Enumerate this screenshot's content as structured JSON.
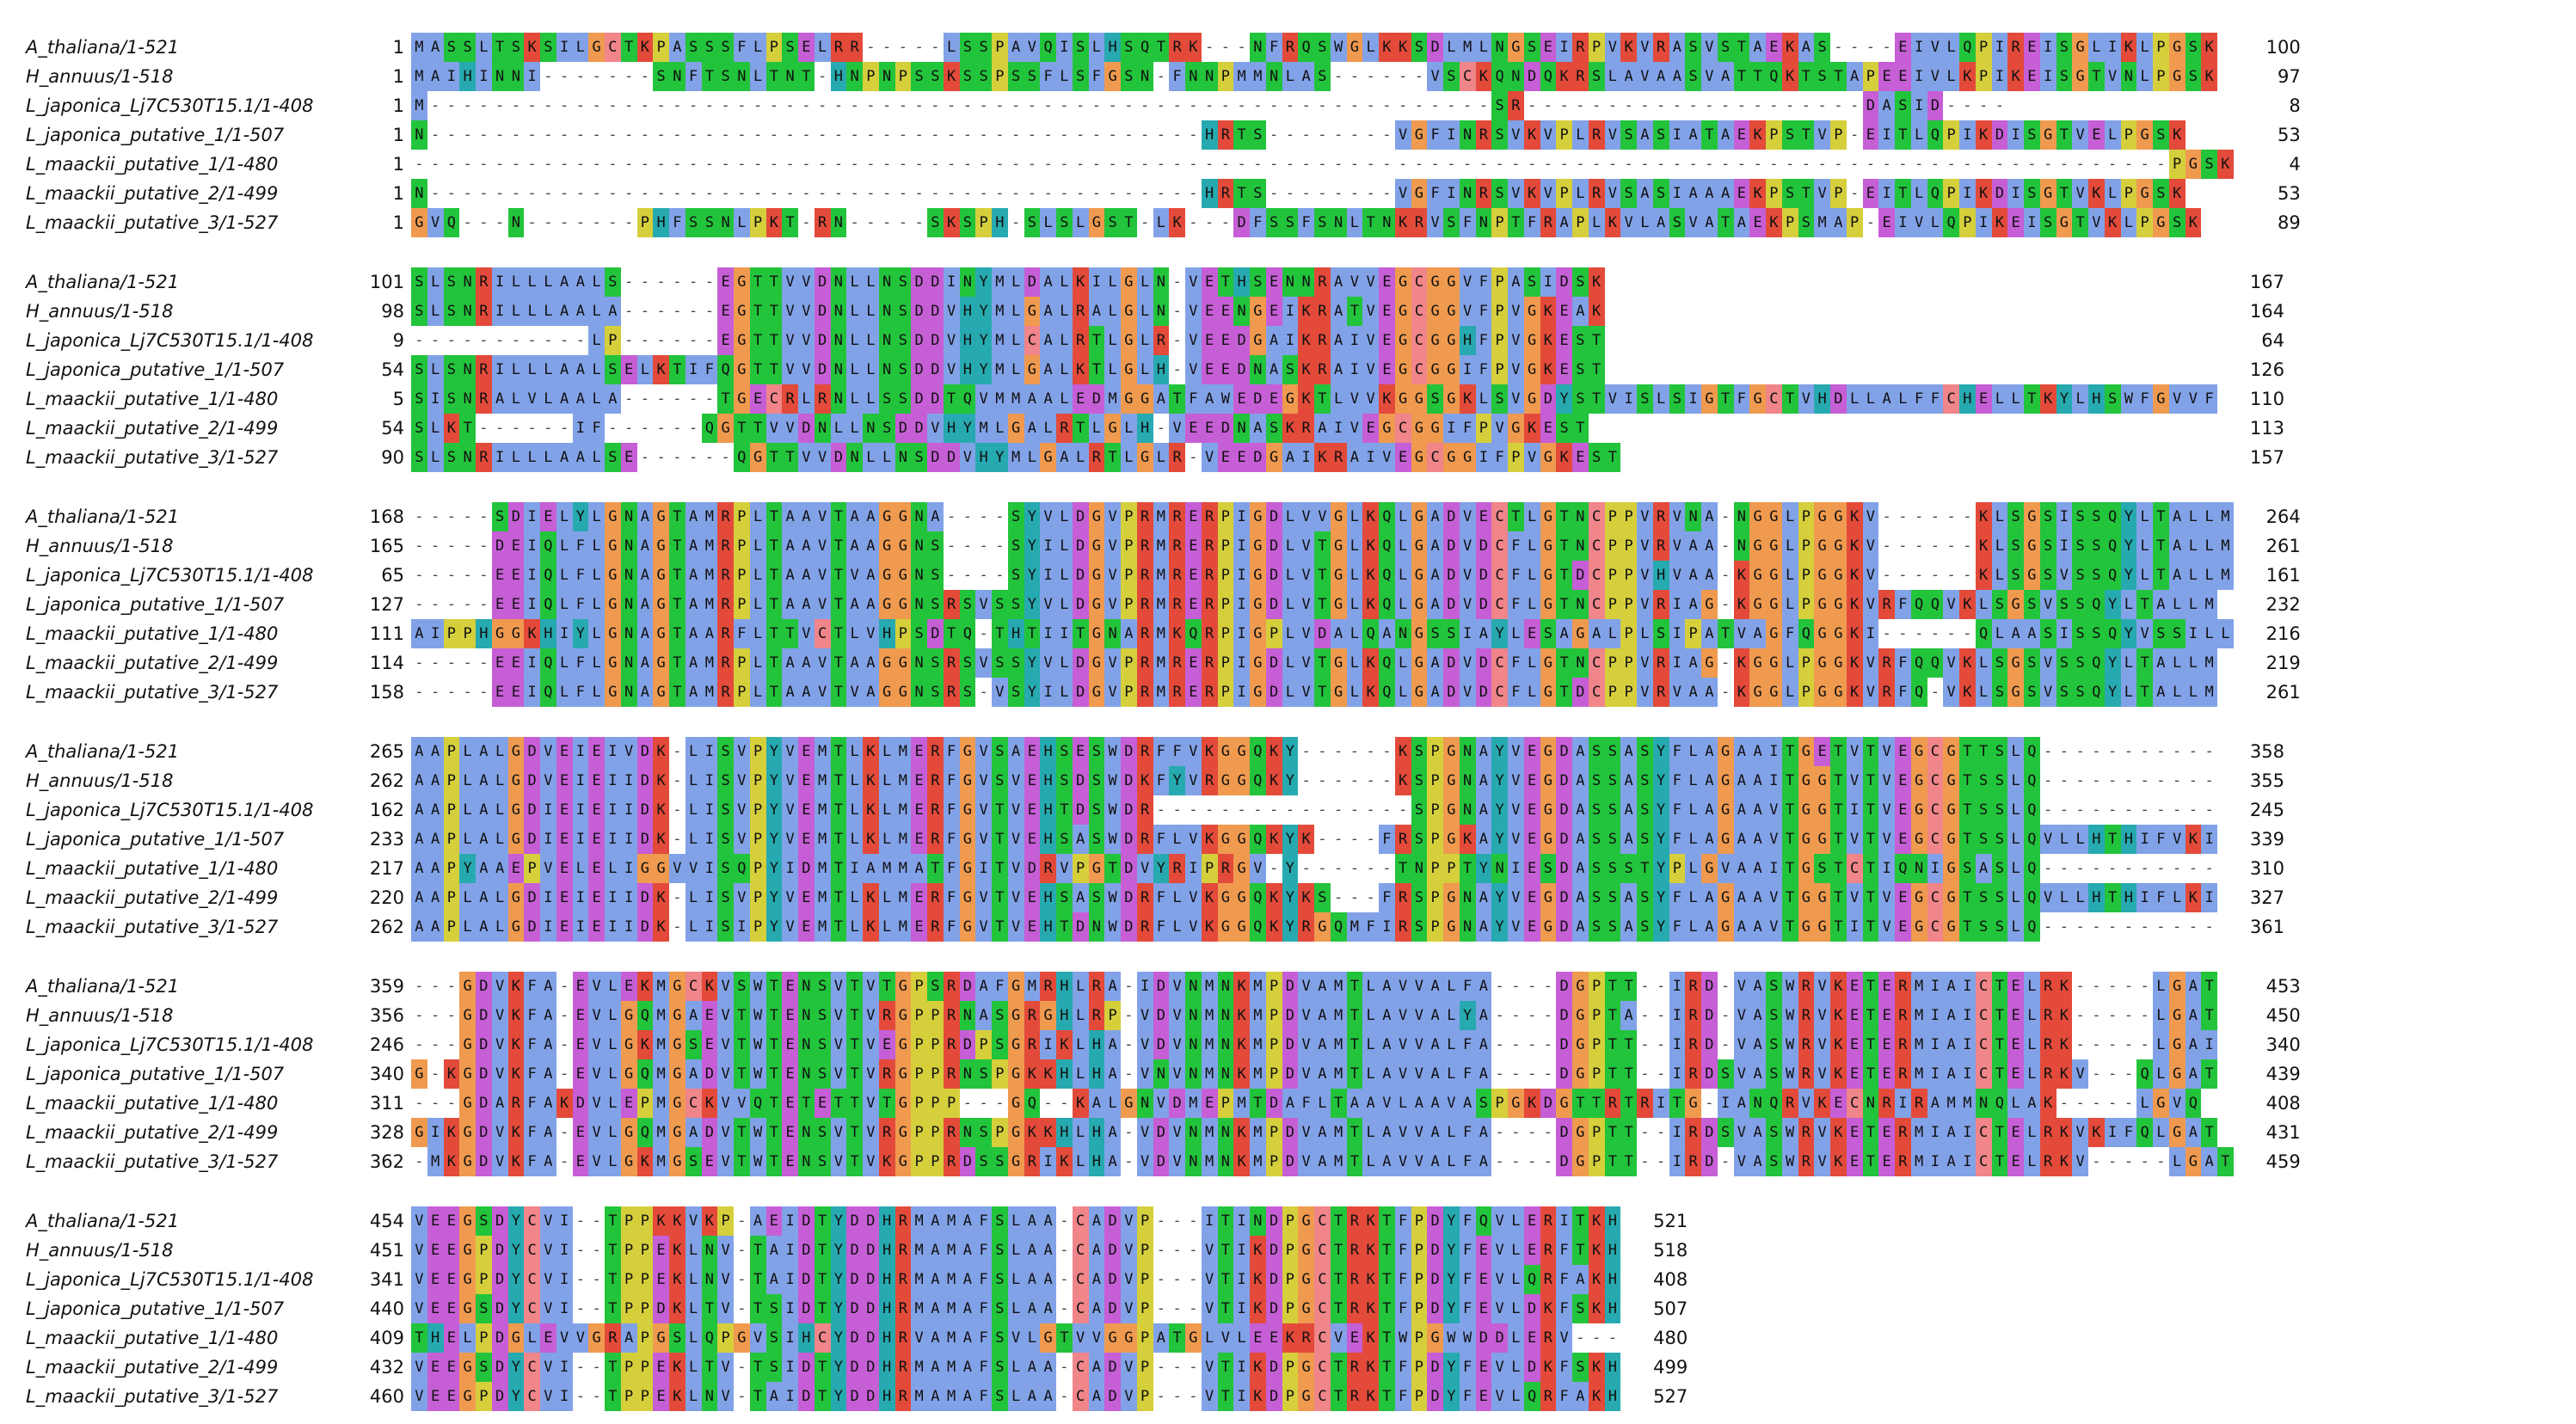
{
  "alignment": {
    "colors": {
      "A": "#82a2e8",
      "I": "#82a2e8",
      "L": "#82a2e8",
      "M": "#82a2e8",
      "F": "#82a2e8",
      "W": "#82a2e8",
      "V": "#82a2e8",
      "K": "#e34a3a",
      "R": "#e34a3a",
      "E": "#c65ed6",
      "D": "#c65ed6",
      "N": "#22c43b",
      "Q": "#22c43b",
      "S": "#22c43b",
      "T": "#22c43b",
      "C": "#f0858a",
      "G": "#ef9a4f",
      "P": "#d5cf3c",
      "H": "#26aab0",
      "Y": "#26aab0"
    },
    "blocks": [
      {
        "rows": [
          {
            "name": "A_thaliana/1-521",
            "start": "1",
            "end": "100",
            "seq": "MASSLTSKSILGCTKPASSSFLPSELRR-----LSSPAVQISLHSQTRK---NFRQSWGLKKSDLMLNGSEIRPVKVRASVSTAEKAS----EIVLQPIREISGLIKLPGSK"
          },
          {
            "name": "H_annuus/1-518",
            "start": "1",
            "end": "97",
            "seq": "MAIHINNI-------SNFTSNLTNT-HNPNPSSKSSPSSFLSFGSN-FNNPMMNLAS------VSCKQNDQKRSLAVAASVATTQKTSTAPEEIVLKPIKEISGTVNLPGSK"
          },
          {
            "name": "L_japonica_Lj7C530T15.1/1-408",
            "start": "1",
            "end": "8",
            "seq": "M------------------------------------------------------------------SR---------------------DASID----"
          },
          {
            "name": "L_japonica_putative_1/1-507",
            "start": "1",
            "end": "53",
            "seq": "N------------------------------------------------HRTS--------VGFINRSVKVPLRVSASIATAEKPSTVP-EITLQPIKDISGTVELPGSK"
          },
          {
            "name": "L_maackii_putative_1/1-480",
            "start": "1",
            "end": "4",
            "seq": "-------------------------------------------------------------------------------------------------------------PGSK"
          },
          {
            "name": "L_maackii_putative_2/1-499",
            "start": "1",
            "end": "53",
            "seq": "N------------------------------------------------HRTS--------VGFINRSVKVPLRVSASIAAAEKPSTVP-EITLQPIKDISGTVKLPGSK"
          },
          {
            "name": "L_maackii_putative_3/1-527",
            "start": "1",
            "end": "89",
            "seq": "GVQ---N-------PHFSSNLPKT-RN-----SKSPH-SLSLGST-LK---DFSSFSNLTNKRVSFNPTFRAPLKVLASVATAEKPSMAP-EIVLQPIKEISGTVKLPGSK"
          }
        ]
      },
      {
        "rows": [
          {
            "name": "A_thaliana/1-521",
            "start": "101",
            "end": "167",
            "seq": "SLSNRILLLAALS------EGTTVVDNLLNSDDINYMLDALKILGLN-VETHSENNRAVVEGCGGVFPASIDSK"
          },
          {
            "name": "H_annuus/1-518",
            "start": "98",
            "end": "164",
            "seq": "SLSNRILLLAALA------EGTTVVDNLLNSDDVHYMLGALRALGLN-VEENGEIKRATVEGCGGVFPVGKEAK"
          },
          {
            "name": "L_japonica_Lj7C530T15.1/1-408",
            "start": "9",
            "end": "64",
            "seq": "-----------LP------EGTTVVDNLLNSDDVHYMLCALRTLGLR-VEEDGAIKRAIVEGCGGHFPVGKEST"
          },
          {
            "name": "L_japonica_putative_1/1-507",
            "start": "54",
            "end": "126",
            "seq": "SLSNRILLLAALSELKTIFQGTTVVDNLLNSDDVHYMLGALKTLGLH-VEEDNASKRAIVEGCGGIFPVGKEST"
          },
          {
            "name": "L_maackii_putative_1/1-480",
            "start": "5",
            "end": "110",
            "seq": "SISNRALVLAALA------TGECRLRNLLSSDDTQVMMAALEDMGGATFAWEDEGKTLVVKGGSGKLSVGDYSTVISLSIGTFGCTVHDLLALFFCHELLTKYLHSWFGVVF"
          },
          {
            "name": "L_maackii_putative_2/1-499",
            "start": "54",
            "end": "113",
            "seq": "SLKT------IF------QGTTVVDNLLNSDDVHYMLGALRTLGLH-VEEDNASKRAIVEGCGGIFPVGKEST"
          },
          {
            "name": "L_maackii_putative_3/1-527",
            "start": "90",
            "end": "157",
            "seq": "SLSNRILLLAALSE------QGTTVVDNLLNSDDVHYMLGALRTLGLR-VEEDGAIKRAIVEGCGGIFPVGKEST"
          }
        ]
      },
      {
        "rows": [
          {
            "name": "A_thaliana/1-521",
            "start": "168",
            "end": "264",
            "seq": "-----SDIELYLGNAGTAMRPLTAAVTAAGGNA----SYVLDGVPRMRERPIGDLVVGLKQLGADVECTLGTNCPPVRVNA-NGGLPGGKV------KLSGSISSQYLTALLM"
          },
          {
            "name": "H_annuus/1-518",
            "start": "165",
            "end": "261",
            "seq": "-----DEIQLFLGNAGTAMRPLTAAVTAAGGNS----SYILDGVPRMRERPIGDLVTGLKQLGADVDCFLGTNCPPVRVAA-NGGLPGGKV------KLSGSISSQYLTALLM"
          },
          {
            "name": "L_japonica_Lj7C530T15.1/1-408",
            "start": "65",
            "end": "161",
            "seq": "-----EEIQLFLGNAGTAMRPLTAAVTVAGGNS----SYILDGVPRMRERPIGDLVTGLKQLGADVDCFLGTDCPPVHVAA-KGGLPGGKV------KLSGSVSSQYLTALLM"
          },
          {
            "name": "L_japonica_putative_1/1-507",
            "start": "127",
            "end": "232",
            "seq": "-----EEIQLFLGNAGTAMRPLTAAVTAAGGNSRSVSSYVLDGVPRMRERPIGDLVTGLKQLGADVDCFLGTNCPPVRIAG-KGGLPGGKVRFQQVKLSGSVSSQYLTALLM"
          },
          {
            "name": "L_maackii_putative_1/1-480",
            "start": "111",
            "end": "216",
            "seq": "AIPPHGGKHIYLGNAGTAARFLTTVCTLVHPSDTQ-THTIITGNARMKQRPIGPLVDALQANGSSIAYLESAGALPLSIPATVAGFQGGKI------QLAASISSQYVSSILL"
          },
          {
            "name": "L_maackii_putative_2/1-499",
            "start": "114",
            "end": "219",
            "seq": "-----EEIQLFLGNAGTAMRPLTAAVTAAGGNSRSVSSYVLDGVPRMRERPIGDLVTGLKQLGADVDCFLGTNCPPVRIAG-KGGLPGGKVRFQQVKLSGSVSSQYLTALLM"
          },
          {
            "name": "L_maackii_putative_3/1-527",
            "start": "158",
            "end": "261",
            "seq": "-----EEIQLFLGNAGTAMRPLTAAVTVAGGNSRS-VSYILDGVPRMRERPIGDLVTGLKQLGADVDCFLGTDCPPVRVAA-KGGLPGGKVRFQ-VKLSGSVSSQYLTALLM"
          }
        ]
      },
      {
        "rows": [
          {
            "name": "A_thaliana/1-521",
            "start": "265",
            "end": "358",
            "seq": "AAPLALGDVEIEIVDK-LISVPYVEMTLKLMERFGVSAEHSESWDRFFVKGGQKY------KSPGNAYVEGDASSASYFLAGAAITGETVTVEGCGTTSLQ-----------"
          },
          {
            "name": "H_annuus/1-518",
            "start": "262",
            "end": "355",
            "seq": "AAPLALGDVEIEIIDK-LISVPYVEMTLKLMERFGVSVEHSDSWDKFYVRGGQKY------KSPGNAYVEGDASSASYFLAGAAITGGTVTVEGCGTSSLQ-----------"
          },
          {
            "name": "L_japonica_Lj7C530T15.1/1-408",
            "start": "162",
            "end": "245",
            "seq": "AAPLALGDIEIEIIDK-LISVPYVEMTLKLMERFGVTVEHTDSWDR----------------SPGNAYVEGDASSASYFLAGAAVTGGTITVEGCGTSSLQ-----------"
          },
          {
            "name": "L_japonica_putative_1/1-507",
            "start": "233",
            "end": "339",
            "seq": "AAPLALGDIEIEIIDK-LISVPYVEMTLKLMERFGVTVEHSASWDRFLVKGGQKYK----FRSPGKAYVEGDASSASYFLAGAAVTGGTVTVEGCGTSSLQVLLHTHIFVKI"
          },
          {
            "name": "L_maackii_putative_1/1-480",
            "start": "217",
            "end": "310",
            "seq": "AAPYAAEPVELELIGGVVISQPYIDMTIAMMATFGITVDRVPGTDVYRIPRGV-Y------TNPPTYNIESDASSSTYPLGVAAITGSTCTIQNIGSASLQ-----------"
          },
          {
            "name": "L_maackii_putative_2/1-499",
            "start": "220",
            "end": "327",
            "seq": "AAPLALGDIEIEIIDK-LISVPYVEMTLKLMERFGVTVEHSASWDRFLVKGGQKYKS---FRSPGNAYVEGDASSASYFLAGAAVTGGTVTVEGCGTSSLQVLLHTHIFLKI"
          },
          {
            "name": "L_maackii_putative_3/1-527",
            "start": "262",
            "end": "361",
            "seq": "AAPLALGDIEIEIIDK-LISIPYVEMTLKLMERFGVTVEHTDNWDRFLVKGGQKYRGQMFIRSPGNAYVEGDASSASYFLAGAAVTGGTITVEGCGTSSLQ-----------"
          }
        ]
      },
      {
        "rows": [
          {
            "name": "A_thaliana/1-521",
            "start": "359",
            "end": "453",
            "seq": "---GDVKFA-EVLEKMGCKVSWTENSVTVTGPSRDAFGMRHLRA-IDVNMNKMPDVAMTLAVVALFA----DGPTT--IRD-VASWRVKETERMIAICTELRK-----LGAT"
          },
          {
            "name": "H_annuus/1-518",
            "start": "356",
            "end": "450",
            "seq": "---GDVKFA-EVLGQMGAEVTWTENSVTVRGPPRNASGRGHLRP-VDVNMNKMPDVAMTLAVVALYA----DGPTA--IRD-VASWRVKETERMIAICTELRK-----LGAT"
          },
          {
            "name": "L_japonica_Lj7C530T15.1/1-408",
            "start": "246",
            "end": "340",
            "seq": "---GDVKFA-EVLGKMGSEVTWTENSVTVEGPPRDPSGRIKLHA-VDVNMNKMPDVAMTLAVVALFA----DGPTT--IRD-VASWRVKETERMIAICTELRK-----LGAI"
          },
          {
            "name": "L_japonica_putative_1/1-507",
            "start": "340",
            "end": "439",
            "seq": "G-KGDVKFA-EVLGQMGADVTWTENSVTVRGPPRNSPGKKHLHA-VNVNMNKMPDVAMTLAVVALFA----DGPTT--IRDSVASWRVKETERMIAICTELRKV---QLGAT"
          },
          {
            "name": "L_maackii_putative_1/1-480",
            "start": "311",
            "end": "408",
            "seq": "---GDARFAKDVLEPMGCKVVQTETETTVTGPPP---GQ--KALGNVDMEPMTDAFLTAAVLAAVASPGKDGTTRTRITG-IANQRVKECNRIRAMMNQLAK-----LGVQ"
          },
          {
            "name": "L_maackii_putative_2/1-499",
            "start": "328",
            "end": "431",
            "seq": "GIKGDVKFA-EVLGQMGADVTWTENSVTVRGPPRNSPGKKHLHA-VDVNMNKMPDVAMTLAVVALFA----DGPTT--IRDSVASWRVKETERMIAICTELRKVKIFQLGAT"
          },
          {
            "name": "L_maackii_putative_3/1-527",
            "start": "362",
            "end": "459",
            "seq": "-MKGDVKFA-EVLGKMGSEVTWTENSVTVKGPPRDSSGRIKLHA-VDVNMNKMPDVAMTLAVVALFA----DGPTT--IRD-VASWRVKETERMIAICTELRKV-----LGAT"
          }
        ]
      },
      {
        "rows": [
          {
            "name": "A_thaliana/1-521",
            "start": "454",
            "end": "521",
            "seq": "VEEGSDYCVI--TPPKKVKP-AEIDTYDDHRMAMAFSLAA-CADVP---ITINDPGCTRKTFPDYFQVLERITKH"
          },
          {
            "name": "H_annuus/1-518",
            "start": "451",
            "end": "518",
            "seq": "VEEGPDYCVI--TPPEKLNV-TAIDTYDDHRMAMAFSLAA-CADVP---VTIKDPGCTRKTFPDYFEVLERFTKH"
          },
          {
            "name": "L_japonica_Lj7C530T15.1/1-408",
            "start": "341",
            "end": "408",
            "seq": "VEEGPDYCVI--TPPEKLNV-TAIDTYDDHRMAMAFSLAA-CADVP---VTIKDPGCTRKTFPDYFEVLQRFAKH"
          },
          {
            "name": "L_japonica_putative_1/1-507",
            "start": "440",
            "end": "507",
            "seq": "VEEGSDYCVI--TPPDKLTV-TSIDTYDDHRMAMAFSLAA-CADVP---VTIKDPGCTRKTFPDYFEVLDKFSKH"
          },
          {
            "name": "L_maackii_putative_1/1-480",
            "start": "409",
            "end": "480",
            "seq": "THELPDGLEVVGRAPGSLQPGVSIHCYDDHRVAMAFSVLGTVVGGPATGLVLEEKRCVEKTWPGWWDDLERV---"
          },
          {
            "name": "L_maackii_putative_2/1-499",
            "start": "432",
            "end": "499",
            "seq": "VEEGSDYCVI--TPPEKLTV-TSIDTYDDHRMAMAFSLAA-CADVP---VTIKDPGCTRKTFPDYFEVLDKFSKH"
          },
          {
            "name": "L_maackii_putative_3/1-527",
            "start": "460",
            "end": "527",
            "seq": "VEEGPDYCVI--TPPEKLNV-TAIDTYDDHRMAMAFSLAA-CADVP---VTIKDPGCTRKTFPDYFEVLQRFAKH"
          }
        ]
      }
    ]
  }
}
